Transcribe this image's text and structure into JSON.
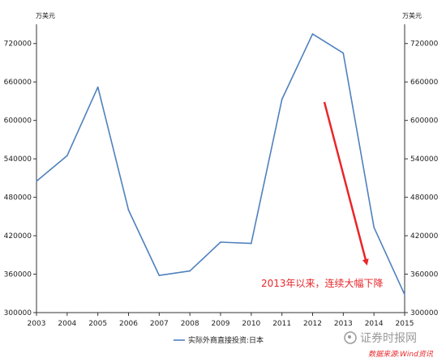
{
  "chart_data": {
    "type": "line",
    "title": "",
    "xlabel": "",
    "ylabel_left": "万美元",
    "ylabel_right": "万美元",
    "x": [
      "2003",
      "2004",
      "2005",
      "2006",
      "2007",
      "2008",
      "2009",
      "2010",
      "2011",
      "2012",
      "2013",
      "2014",
      "2015"
    ],
    "series": [
      {
        "name": "实际外商直接投资:日本",
        "color": "#4f81bd",
        "values": [
          505000,
          545000,
          652000,
          460000,
          358000,
          365000,
          410000,
          408000,
          633000,
          735000,
          705000,
          433000,
          328000
        ]
      }
    ],
    "ylim": [
      300000,
      750000
    ],
    "yticks": [
      "300000",
      "360000",
      "420000",
      "480000",
      "540000",
      "600000",
      "660000",
      "720000"
    ],
    "grid": false,
    "legend": "bottom-center",
    "annotation": {
      "text": "2013年以来，连续大幅下降",
      "color": "#e8262a"
    }
  },
  "watermark": {
    "text": "证券时报网"
  },
  "source": {
    "text": "数据来源:Wind资讯"
  }
}
